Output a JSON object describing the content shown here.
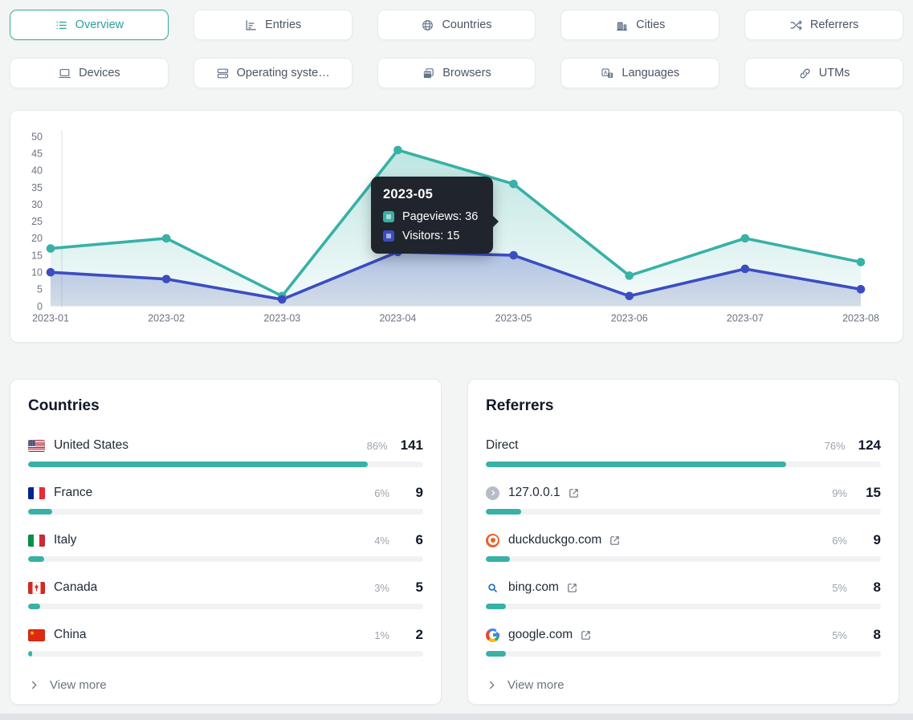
{
  "colors": {
    "accent_teal": "#38b1a6",
    "accent_indigo": "#3c4dc0",
    "tooltip_bg": "#20252d",
    "bar_track": "#f0f2f4"
  },
  "tabs": [
    {
      "label": "Overview",
      "icon": "queue-list",
      "active": true
    },
    {
      "label": "Entries",
      "icon": "chart-bar",
      "active": false
    },
    {
      "label": "Countries",
      "icon": "globe",
      "active": false
    },
    {
      "label": "Cities",
      "icon": "building",
      "active": false
    },
    {
      "label": "Referrers",
      "icon": "shuffle",
      "active": false
    },
    {
      "label": "Devices",
      "icon": "laptop",
      "active": false
    },
    {
      "label": "Operating syste…",
      "icon": "server-stack",
      "active": false
    },
    {
      "label": "Browsers",
      "icon": "window-stack",
      "active": false
    },
    {
      "label": "Languages",
      "icon": "language",
      "active": false
    },
    {
      "label": "UTMs",
      "icon": "link",
      "active": false
    }
  ],
  "chart_data": {
    "type": "line",
    "x": [
      "2023-01",
      "2023-02",
      "2023-03",
      "2023-04",
      "2023-05",
      "2023-06",
      "2023-07",
      "2023-08"
    ],
    "series": [
      {
        "name": "Pageviews",
        "color": "#38b1a6",
        "values": [
          17,
          20,
          3,
          46,
          36,
          9,
          20,
          13
        ]
      },
      {
        "name": "Visitors",
        "color": "#3c4dc0",
        "values": [
          10,
          8,
          2,
          16,
          15,
          3,
          11,
          5
        ]
      }
    ],
    "ylim": [
      0,
      50
    ],
    "yticks": [
      0,
      5,
      10,
      15,
      20,
      25,
      30,
      35,
      40,
      45,
      50
    ],
    "grid": false,
    "legend": "none",
    "area_fill": true,
    "tooltip": {
      "title": "2023-05",
      "rows": [
        {
          "label": "Pageviews: 36",
          "color": "#38b1a6"
        },
        {
          "label": "Visitors: 15",
          "color": "#3c4dc0"
        }
      ]
    }
  },
  "countries": {
    "title": "Countries",
    "rows": [
      {
        "flag": "us",
        "name": "United States",
        "percent": "86%",
        "count": "141",
        "bar": 86
      },
      {
        "flag": "fr",
        "name": "France",
        "percent": "6%",
        "count": "9",
        "bar": 6
      },
      {
        "flag": "it",
        "name": "Italy",
        "percent": "4%",
        "count": "6",
        "bar": 4
      },
      {
        "flag": "ca",
        "name": "Canada",
        "percent": "3%",
        "count": "5",
        "bar": 3
      },
      {
        "flag": "cn",
        "name": "China",
        "percent": "1%",
        "count": "2",
        "bar": 1
      }
    ],
    "view_more": "View more"
  },
  "referrers": {
    "title": "Referrers",
    "rows": [
      {
        "icon": "none",
        "name": "Direct",
        "external": false,
        "percent": "76%",
        "count": "124",
        "bar": 76
      },
      {
        "icon": "default",
        "name": "127.0.0.1",
        "external": true,
        "percent": "9%",
        "count": "15",
        "bar": 9
      },
      {
        "icon": "duckduckgo",
        "name": "duckduckgo.com",
        "external": true,
        "percent": "6%",
        "count": "9",
        "bar": 6
      },
      {
        "icon": "bing",
        "name": "bing.com",
        "external": true,
        "percent": "5%",
        "count": "8",
        "bar": 5
      },
      {
        "icon": "google",
        "name": "google.com",
        "external": true,
        "percent": "5%",
        "count": "8",
        "bar": 5
      }
    ],
    "view_more": "View more"
  }
}
